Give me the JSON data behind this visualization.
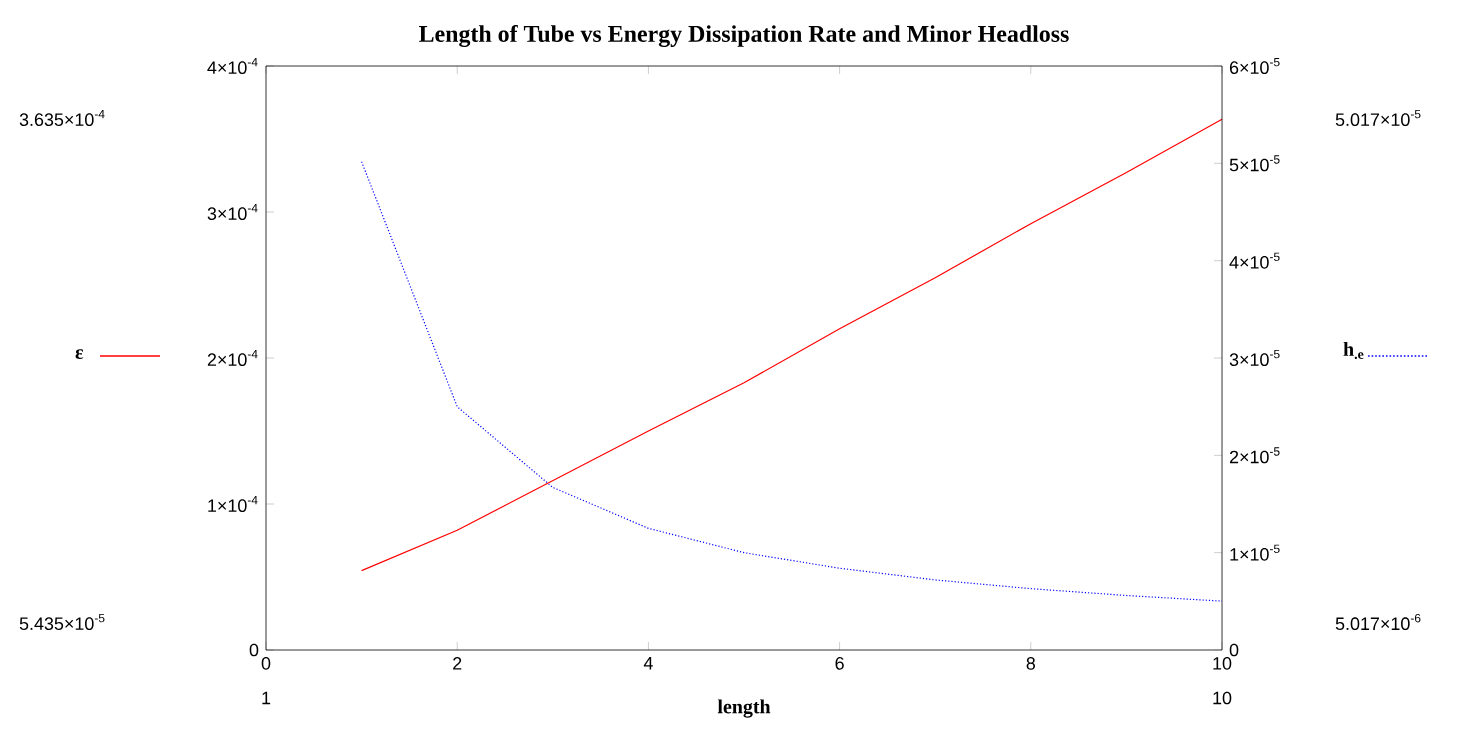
{
  "chart_data": {
    "type": "line",
    "title": "Length of Tube vs Energy Dissipation Rate and Minor Headloss",
    "xlabel": "length",
    "x": [
      1,
      2,
      3,
      4,
      5,
      6,
      7,
      8,
      9,
      10
    ],
    "series": [
      {
        "name": "ε",
        "color": "#ff0000",
        "line_style": "solid",
        "values": [
          5.435e-05,
          8.2e-05,
          0.000116,
          0.00015,
          0.000183,
          0.00022,
          0.000255,
          0.000292,
          0.000327,
          0.0003635
        ]
      },
      {
        "name": "h$_{.e}$",
        "color": "#0000ff",
        "line_style": "dotted",
        "axis": "y2",
        "values": [
          5.017e-05,
          2.5e-05,
          1.67e-05,
          1.25e-05,
          1e-05,
          8.4e-06,
          7.2e-06,
          6.3e-06,
          5.6e-06,
          5.017e-06
        ]
      }
    ],
    "legend": "left",
    "xlim": [
      0,
      10
    ],
    "xticks": [
      0,
      2,
      4,
      6,
      8,
      10
    ],
    "ylim": [
      0,
      0.0004
    ],
    "yticks": [
      0,
      {
        "value": 0.0001,
        "label": "1×10$^{-4}$"
      },
      {
        "value": 0.0002,
        "label": "2×10$^{-4}$"
      },
      {
        "value": 0.0003,
        "label": "3×10$^{-4}$"
      },
      {
        "value": 0.0004,
        "label": "4×10$^{-4}$"
      }
    ],
    "y2lim": [
      0,
      6e-05
    ],
    "y2ticks": [
      0,
      {
        "value": 1e-05,
        "label": "1×10$^{-5}$"
      },
      {
        "value": 2e-05,
        "label": "2×10$^{-5}$"
      },
      {
        "value": 3e-05,
        "label": "3×10$^{-5}$"
      },
      {
        "value": 4e-05,
        "label": "4×10$^{-5}$"
      },
      {
        "value": 5e-05,
        "label": "5×10$^{-5}$"
      },
      {
        "value": 6e-05,
        "label": "6×10$^{-5}$"
      }
    ],
    "annotations": [
      "3.635×10$^{-4}$",
      "5.435×10$^{-5}$",
      "5.017×10$^{-5}$",
      "5.017×10$^{-6}$",
      "1",
      "10"
    ]
  }
}
